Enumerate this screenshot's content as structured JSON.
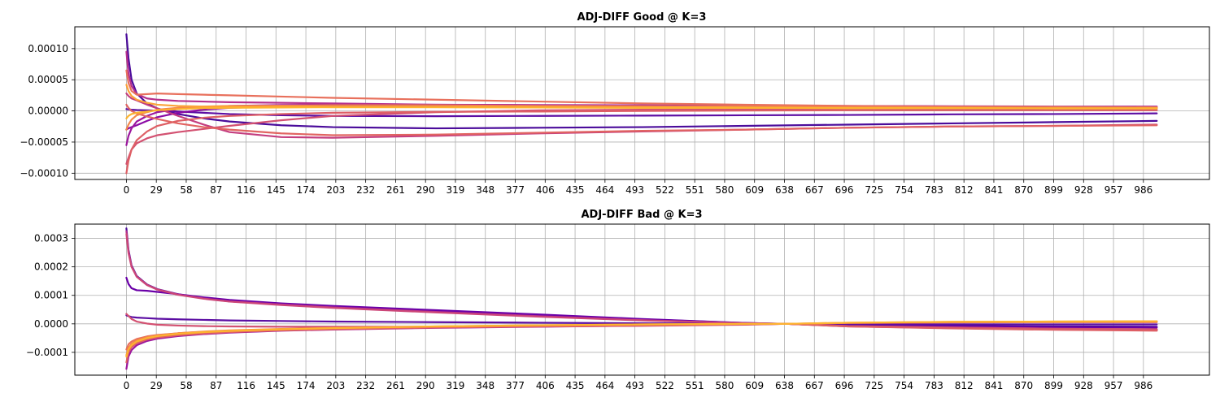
{
  "chart_data": [
    {
      "type": "line",
      "title": "ADJ-DIFF Good @ K=3",
      "xlabel": "",
      "ylabel": "",
      "xlim": [
        -50,
        1050
      ],
      "ylim": [
        -0.00011,
        0.000135
      ],
      "grid": true,
      "legend": "none",
      "x_ticks": [
        0,
        29,
        58,
        87,
        116,
        145,
        174,
        203,
        232,
        261,
        290,
        319,
        348,
        377,
        406,
        435,
        464,
        493,
        522,
        551,
        580,
        609,
        638,
        667,
        696,
        725,
        754,
        783,
        812,
        841,
        870,
        899,
        928,
        957,
        986
      ],
      "y_ticks": [
        -0.0001,
        -5e-05,
        0,
        5e-05,
        0.0001
      ],
      "y_tick_labels": [
        "−0.00010",
        "−0.00005",
        "0.00000",
        "0.00005",
        "0.00010"
      ],
      "x": [
        0,
        2,
        5,
        10,
        20,
        30,
        50,
        75,
        100,
        150,
        200,
        300,
        400,
        500,
        600,
        700,
        800,
        900,
        999
      ],
      "series": [
        {
          "color": "#4b0c9b",
          "values": [
            0.000123,
            8.5e-05,
            5e-05,
            2.8e-05,
            1.2e-05,
            4e-06,
            -5e-06,
            -1.2e-05,
            -1.7e-05,
            -2.3e-05,
            -2.6e-05,
            -2.8e-05,
            -2.7e-05,
            -2.6e-05,
            -2.4e-05,
            -2.2e-05,
            -2e-05,
            -1.8e-05,
            -1.6e-05
          ]
        },
        {
          "color": "#5c0ea3",
          "values": [
            3e-06,
            2.5e-06,
            2e-06,
            1.5e-06,
            1e-06,
            5e-07,
            -1e-06,
            -3e-06,
            -5e-06,
            -7e-06,
            -8e-06,
            -8.5e-06,
            -8e-06,
            -7.5e-06,
            -7e-06,
            -6.5e-06,
            -5.5e-06,
            -5e-06,
            -4e-06
          ]
        },
        {
          "color": "#8b0aa5",
          "values": [
            -3e-05,
            -2.8e-05,
            -2.6e-05,
            -2.3e-05,
            -1.6e-05,
            -1e-05,
            -3e-06,
            2e-06,
            5e-06,
            7e-06,
            8e-06,
            8e-06,
            7.5e-06,
            7e-06,
            6.5e-06,
            6e-06,
            5.5e-06,
            5e-06,
            5e-06
          ]
        },
        {
          "color": "#9c179e",
          "values": [
            -5.5e-05,
            -4e-05,
            -2.8e-05,
            -1.7e-05,
            -8e-06,
            -2e-06,
            3e-06,
            6e-06,
            8e-06,
            9.5e-06,
            1e-05,
            1e-05,
            9.5e-06,
            9e-06,
            8.5e-06,
            8e-06,
            7.5e-06,
            7e-06,
            7e-06
          ]
        },
        {
          "color": "#b52f8c",
          "values": [
            9.5e-05,
            6e-05,
            4e-05,
            2.7e-05,
            2e-05,
            1.8e-05,
            1.6e-05,
            1.5e-05,
            1.4e-05,
            1.3e-05,
            1.2e-05,
            1e-05,
            9e-06,
            8e-06,
            7e-06,
            6e-06,
            5.5e-06,
            5e-06,
            5e-06
          ]
        },
        {
          "color": "#c43e7f",
          "values": [
            2.8e-05,
            2.4e-05,
            2e-05,
            1.7e-05,
            1e-05,
            4e-06,
            -8e-06,
            -2.2e-05,
            -3.4e-05,
            -4.2e-05,
            -4.3e-05,
            -4e-05,
            -3.6e-05,
            -3.3e-05,
            -3e-05,
            -2.7e-05,
            -2.5e-05,
            -2.4e-05,
            -2.2e-05
          ]
        },
        {
          "color": "#d35171",
          "values": [
            -8.5e-05,
            -7.5e-05,
            -6.2e-05,
            -5.2e-05,
            -4.4e-05,
            -3.9e-05,
            -3.4e-05,
            -2.9e-05,
            -2.4e-05,
            -1.5e-05,
            -8e-06,
            -2e-06,
            1e-06,
            2e-06,
            2.5e-06,
            3e-06,
            3e-06,
            3e-06,
            3e-06
          ]
        },
        {
          "color": "#de5f65",
          "values": [
            -0.0001,
            -8e-05,
            -6.2e-05,
            -4.7e-05,
            -3.3e-05,
            -2.4e-05,
            -1.6e-05,
            -1.1e-05,
            -8e-06,
            -5e-06,
            -3e-06,
            -1.5e-06,
            -1e-06,
            0,
            5e-07,
            1e-06,
            1e-06,
            1e-06,
            1e-06
          ]
        },
        {
          "color": "#e8705c",
          "values": [
            6.5e-05,
            4.5e-05,
            3.2e-05,
            2.6e-05,
            2.7e-05,
            2.8e-05,
            2.7e-05,
            2.6e-05,
            2.5e-05,
            2.3e-05,
            2.1e-05,
            1.8e-05,
            1.5e-05,
            1.2e-05,
            1e-05,
            8e-06,
            7e-06,
            6.5e-06,
            6e-06
          ]
        },
        {
          "color": "#e16462",
          "values": [
            1e-05,
            5e-06,
            0,
            -4e-06,
            -9e-06,
            -1.3e-05,
            -2e-05,
            -2.6e-05,
            -3e-05,
            -3.6e-05,
            -3.9e-05,
            -3.8e-05,
            -3.5e-05,
            -3.2e-05,
            -3e-05,
            -2.7e-05,
            -2.5e-05,
            -2.4e-05,
            -2.3e-05
          ]
        },
        {
          "color": "#f48849",
          "values": [
            -3e-05,
            -2.2e-05,
            -1.4e-05,
            -7e-06,
            -2e-06,
            2e-06,
            5e-06,
            7e-06,
            8e-06,
            8.5e-06,
            9e-06,
            9e-06,
            8e-06,
            7.5e-06,
            7e-06,
            6e-06,
            5.5e-06,
            5e-06,
            5e-06
          ]
        },
        {
          "color": "#fca338",
          "values": [
            4.2e-05,
            3.2e-05,
            2.4e-05,
            1.8e-05,
            1.3e-05,
            1e-05,
            8e-06,
            7e-06,
            7e-06,
            6.5e-06,
            6e-06,
            6e-06,
            5.5e-06,
            5e-06,
            5e-06,
            4.5e-06,
            4.5e-06,
            4e-06,
            4e-06
          ]
        },
        {
          "color": "#fdb42f",
          "values": [
            -1.2e-05,
            -8e-06,
            -5e-06,
            -3e-06,
            -1e-06,
            1e-06,
            3e-06,
            4.5e-06,
            5e-06,
            5.5e-06,
            6e-06,
            6e-06,
            5.5e-06,
            5e-06,
            5e-06,
            4.5e-06,
            4.5e-06,
            4e-06,
            4e-06
          ]
        }
      ]
    },
    {
      "type": "line",
      "title": "ADJ-DIFF Bad @ K=3",
      "xlabel": "",
      "ylabel": "",
      "xlim": [
        -50,
        1050
      ],
      "ylim": [
        -0.00018,
        0.00035
      ],
      "grid": true,
      "legend": "none",
      "x_ticks": [
        0,
        29,
        58,
        87,
        116,
        145,
        174,
        203,
        232,
        261,
        290,
        319,
        348,
        377,
        406,
        435,
        464,
        493,
        522,
        551,
        580,
        609,
        638,
        667,
        696,
        725,
        754,
        783,
        812,
        841,
        870,
        899,
        928,
        957,
        986
      ],
      "y_ticks": [
        -0.0001,
        0,
        0.0001,
        0.0002,
        0.0003
      ],
      "y_tick_labels": [
        "−0.0001",
        "0.0000",
        "0.0001",
        "0.0002",
        "0.0003"
      ],
      "x": [
        0,
        2,
        5,
        10,
        20,
        30,
        50,
        75,
        100,
        150,
        200,
        300,
        400,
        500,
        600,
        640,
        700,
        800,
        900,
        999
      ],
      "series": [
        {
          "color": "#4b0c9b",
          "values": [
            0.000335,
            0.00026,
            0.000205,
            0.000168,
            0.000138,
            0.000122,
            0.000104,
            8.9e-05,
            7.9e-05,
            6.8e-05,
            6e-05,
            4.6e-05,
            3.1e-05,
            1.6e-05,
            3e-06,
            0,
            -4e-06,
            -7e-06,
            -9e-06,
            -1e-05
          ]
        },
        {
          "color": "#6a00a8",
          "values": [
            0.000162,
            0.00014,
            0.000125,
            0.000118,
            0.000116,
            0.000112,
            0.000104,
            9.3e-05,
            8.4e-05,
            7.2e-05,
            6.3e-05,
            4.8e-05,
            3.3e-05,
            1.7e-05,
            3e-06,
            0,
            -5e-06,
            -9e-06,
            -1.2e-05,
            -1.3e-05
          ]
        },
        {
          "color": "#5c0ea3",
          "values": [
            3e-05,
            2.7e-05,
            2.4e-05,
            2.2e-05,
            2e-05,
            1.8e-05,
            1.6e-05,
            1.4e-05,
            1.2e-05,
            1e-05,
            8e-06,
            6e-06,
            4e-06,
            2e-06,
            1e-06,
            0,
            -1e-06,
            -1.5e-06,
            -2e-06,
            -2e-06
          ]
        },
        {
          "color": "#9c179e",
          "values": [
            -0.000158,
            -0.000115,
            -9.2e-05,
            -7.5e-05,
            -6e-05,
            -5.2e-05,
            -4.3e-05,
            -3.6e-05,
            -3.1e-05,
            -2.4e-05,
            -2e-05,
            -1.4e-05,
            -1e-05,
            -6e-06,
            -2e-06,
            0,
            -8e-06,
            -1.4e-05,
            -1.8e-05,
            -2.1e-05
          ]
        },
        {
          "color": "#b52f8c",
          "values": [
            0.000325,
            0.000255,
            0.000202,
            0.000166,
            0.000137,
            0.000121,
            0.000103,
            8.9e-05,
            7.9e-05,
            6.8e-05,
            5.8e-05,
            4.2e-05,
            2.7e-05,
            1.3e-05,
            2e-06,
            0,
            -8e-06,
            -1.3e-05,
            -1.7e-05,
            -2e-05
          ]
        },
        {
          "color": "#cc4778",
          "values": [
            0.000315,
            0.000248,
            0.0002,
            0.000165,
            0.000136,
            0.00012,
            0.000102,
            8.8e-05,
            7.8e-05,
            6.6e-05,
            5.6e-05,
            4e-05,
            2.5e-05,
            1.2e-05,
            2e-06,
            0,
            -9e-06,
            -1.5e-05,
            -2e-05,
            -2.3e-05
          ]
        },
        {
          "color": "#d35171",
          "values": [
            3.5e-05,
            2.8e-05,
            1.7e-05,
            8e-06,
            1e-06,
            -3e-06,
            -6e-06,
            -8e-06,
            -9e-06,
            -1e-05,
            -1e-05,
            -1e-05,
            -9e-06,
            -7e-06,
            -3e-06,
            0,
            -8e-06,
            -1.3e-05,
            -1.7e-05,
            -1.9e-05
          ]
        },
        {
          "color": "#de5f65",
          "values": [
            -0.000135,
            -0.0001,
            -8.2e-05,
            -6.8e-05,
            -5.5e-05,
            -4.8e-05,
            -4e-05,
            -3.4e-05,
            -2.9e-05,
            -2.3e-05,
            -1.9e-05,
            -1.3e-05,
            -9e-06,
            -5e-06,
            -2e-06,
            0,
            -9e-06,
            -1.6e-05,
            -2.1e-05,
            -2.4e-05
          ]
        },
        {
          "color": "#e8705c",
          "values": [
            -9e-05,
            -7.2e-05,
            -6.2e-05,
            -5.3e-05,
            -4.4e-05,
            -3.9e-05,
            -3.3e-05,
            -2.8e-05,
            -2.4e-05,
            -1.9e-05,
            -1.5e-05,
            -1e-05,
            -6e-06,
            -3e-06,
            -1e-06,
            0,
            3e-06,
            5e-06,
            6e-06,
            6e-06
          ]
        },
        {
          "color": "#f48849",
          "values": [
            -0.00011,
            -8.5e-05,
            -7e-05,
            -5.8e-05,
            -4.7e-05,
            -4e-05,
            -3.3e-05,
            -2.7e-05,
            -2.3e-05,
            -1.8e-05,
            -1.4e-05,
            -9e-06,
            -5e-06,
            -2e-06,
            0,
            0,
            4e-06,
            7e-06,
            8e-06,
            9e-06
          ]
        },
        {
          "color": "#fdb42f",
          "values": [
            -0.000115,
            -9e-05,
            -7.5e-05,
            -6.2e-05,
            -5e-05,
            -4.3e-05,
            -3.5e-05,
            -2.9e-05,
            -2.5e-05,
            -1.9e-05,
            -1.5e-05,
            -9e-06,
            -5e-06,
            -2e-06,
            0,
            0,
            4e-06,
            7e-06,
            8e-06,
            9e-06
          ]
        }
      ]
    }
  ]
}
